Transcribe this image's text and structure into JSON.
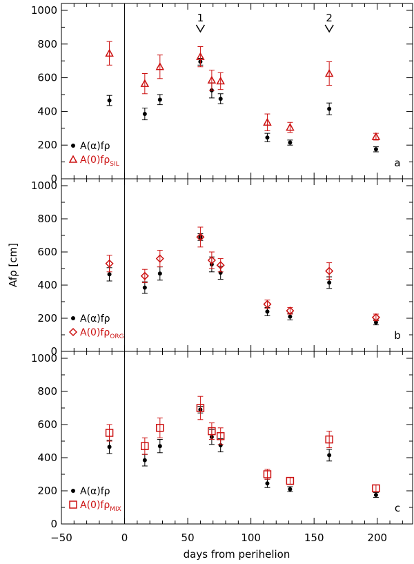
{
  "figure": {
    "xlabel": "days from perihelion",
    "ylabel": "Afρ [cm]",
    "xticks": [
      "−50",
      "0",
      "50",
      "100",
      "150",
      "200"
    ],
    "yticks": [
      "0",
      "200",
      "400",
      "600",
      "800",
      "1000"
    ],
    "markers": [
      {
        "label": "1",
        "x": 60
      },
      {
        "label": "2",
        "x": 162
      }
    ]
  },
  "colors": {
    "black": "#000000",
    "red": "#cc1111"
  },
  "chart_data": [
    {
      "type": "scatter",
      "panel_label": "a",
      "xlim": [
        -50,
        228
      ],
      "ylim": [
        0,
        1000
      ],
      "legend": [
        {
          "prefix": "A(",
          "greek": "α",
          "mid": ")f",
          "rho": "ρ",
          "sub": ""
        },
        {
          "prefix": "A(",
          "greek": "0",
          "mid": ")f",
          "rho": "ρ",
          "sub": "SIL"
        }
      ],
      "series": [
        {
          "marker": "circle",
          "color": "black",
          "x": [
            -12,
            16,
            28,
            60,
            69,
            76,
            113,
            131,
            162,
            199
          ],
          "y": [
            465,
            385,
            470,
            695,
            525,
            475,
            245,
            215,
            415,
            175
          ],
          "err": [
            30,
            35,
            30,
            20,
            45,
            30,
            25,
            15,
            35,
            15
          ]
        },
        {
          "marker": "triangle",
          "color": "red",
          "x": [
            -12,
            16,
            28,
            60,
            69,
            76,
            113,
            131,
            162,
            199
          ],
          "y": [
            745,
            565,
            665,
            725,
            585,
            580,
            335,
            305,
            625,
            250
          ],
          "err": [
            70,
            60,
            70,
            60,
            60,
            50,
            50,
            30,
            70,
            20
          ]
        }
      ]
    },
    {
      "type": "scatter",
      "panel_label": "b",
      "xlim": [
        -50,
        228
      ],
      "ylim": [
        0,
        1000
      ],
      "legend": [
        {
          "prefix": "A(",
          "greek": "α",
          "mid": ")f",
          "rho": "ρ",
          "sub": ""
        },
        {
          "prefix": "A(",
          "greek": "0",
          "mid": ")f",
          "rho": "ρ",
          "sub": "ORG"
        }
      ],
      "series": [
        {
          "marker": "circle",
          "color": "black",
          "x": [
            -12,
            16,
            28,
            60,
            69,
            76,
            113,
            131,
            162,
            199
          ],
          "y": [
            465,
            385,
            470,
            690,
            525,
            475,
            240,
            210,
            415,
            175
          ],
          "err": [
            40,
            35,
            40,
            20,
            45,
            40,
            25,
            20,
            35,
            15
          ]
        },
        {
          "marker": "diamond",
          "color": "red",
          "x": [
            -12,
            16,
            28,
            60,
            69,
            76,
            113,
            131,
            162,
            199
          ],
          "y": [
            530,
            455,
            560,
            690,
            550,
            520,
            285,
            245,
            485,
            205
          ],
          "err": [
            50,
            40,
            50,
            60,
            50,
            40,
            25,
            20,
            50,
            20
          ]
        }
      ]
    },
    {
      "type": "scatter",
      "panel_label": "c",
      "xlim": [
        -50,
        228
      ],
      "ylim": [
        0,
        1000
      ],
      "legend": [
        {
          "prefix": "A(",
          "greek": "α",
          "mid": ")f",
          "rho": "ρ",
          "sub": ""
        },
        {
          "prefix": "A(",
          "greek": "0",
          "mid": ")f",
          "rho": "ρ",
          "sub": "MIX"
        }
      ],
      "series": [
        {
          "marker": "circle",
          "color": "black",
          "x": [
            -12,
            16,
            28,
            60,
            69,
            76,
            113,
            131,
            162,
            199
          ],
          "y": [
            465,
            385,
            470,
            690,
            525,
            475,
            245,
            210,
            415,
            175
          ],
          "err": [
            40,
            35,
            40,
            20,
            45,
            40,
            25,
            15,
            35,
            15
          ]
        },
        {
          "marker": "square",
          "color": "red",
          "x": [
            -12,
            16,
            28,
            60,
            69,
            76,
            113,
            131,
            162,
            199
          ],
          "y": [
            550,
            470,
            580,
            700,
            560,
            530,
            300,
            260,
            510,
            215
          ],
          "err": [
            50,
            50,
            60,
            70,
            50,
            50,
            30,
            20,
            50,
            20
          ]
        }
      ]
    }
  ]
}
